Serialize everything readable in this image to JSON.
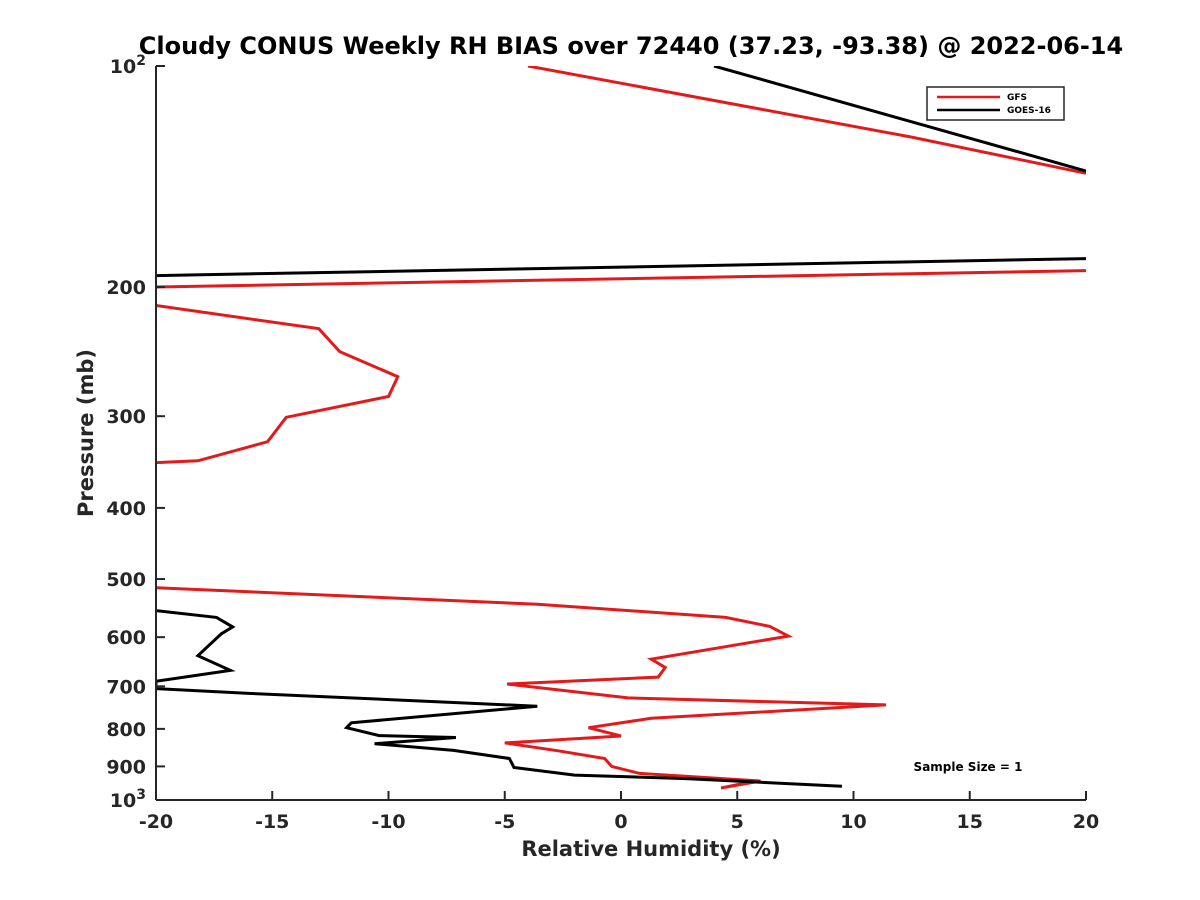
{
  "chart_data": {
    "type": "line",
    "title": "Cloudy CONUS Weekly RH BIAS over 72440 (37.23, -93.38) @ 2022-06-14",
    "xlabel": "Relative Humidity (%)",
    "ylabel": "Pressure (mb)",
    "xlim": [
      -20,
      20
    ],
    "ylim": [
      100,
      1000
    ],
    "yscale": "log",
    "y_reversed": true,
    "grid": false,
    "legend_position": "top-right",
    "x_ticks": [
      {
        "value": -20,
        "label": "-20"
      },
      {
        "value": -15,
        "label": "-15"
      },
      {
        "value": -10,
        "label": "-10"
      },
      {
        "value": -5,
        "label": "-5"
      },
      {
        "value": 0,
        "label": "0"
      },
      {
        "value": 5,
        "label": "5"
      },
      {
        "value": 10,
        "label": "10"
      },
      {
        "value": 15,
        "label": "15"
      },
      {
        "value": 20,
        "label": "20"
      }
    ],
    "y_ticks": [
      {
        "value": 100,
        "base": "10",
        "exp": "2"
      },
      {
        "value": 200,
        "base": "200",
        "exp": ""
      },
      {
        "value": 300,
        "base": "300",
        "exp": ""
      },
      {
        "value": 400,
        "base": "400",
        "exp": ""
      },
      {
        "value": 500,
        "base": "500",
        "exp": ""
      },
      {
        "value": 600,
        "base": "600",
        "exp": ""
      },
      {
        "value": 700,
        "base": "700",
        "exp": ""
      },
      {
        "value": 800,
        "base": "800",
        "exp": ""
      },
      {
        "value": 900,
        "base": "900",
        "exp": ""
      },
      {
        "value": 1000,
        "base": "10",
        "exp": "3"
      }
    ],
    "series": [
      {
        "name": "GFS",
        "color": "#e31a1c",
        "segments": [
          [
            [
              -4,
              100
            ],
            [
              12.5,
              125
            ],
            [
              20,
              140
            ]
          ],
          [
            [
              -20,
              200
            ],
            [
              20,
              190
            ]
          ],
          [
            [
              -20,
              212
            ],
            [
              -13,
              228
            ],
            [
              -12.1,
              245
            ],
            [
              -9.6,
              265
            ],
            [
              -10,
              282
            ],
            [
              -14.4,
              301
            ],
            [
              -15.2,
              325
            ],
            [
              -18.2,
              345
            ],
            [
              -20,
              347
            ]
          ],
          [
            [
              -20,
              514
            ],
            [
              -3.6,
              541
            ],
            [
              4.5,
              564
            ],
            [
              6.4,
              580
            ],
            [
              7.2,
              598
            ],
            [
              1.3,
              643
            ],
            [
              1.9,
              660
            ],
            [
              1.6,
              680
            ],
            [
              -4.9,
              695
            ],
            [
              0.3,
              726
            ],
            [
              11.4,
              742
            ],
            [
              1.3,
              774
            ],
            [
              -1.4,
              797
            ],
            [
              0,
              818
            ],
            [
              -5,
              836
            ],
            [
              -2.7,
              857
            ],
            [
              -0.7,
              878
            ],
            [
              -0.4,
              900
            ],
            [
              0.8,
              920
            ],
            [
              6,
              942
            ],
            [
              4.3,
              963
            ],
            [
              5.5,
              946
            ]
          ]
        ]
      },
      {
        "name": "GOES-16",
        "color": "#000000",
        "segments": [
          [
            [
              4,
              100
            ],
            [
              19.3,
              137
            ],
            [
              20,
              139
            ]
          ],
          [
            [
              -20,
              193
            ],
            [
              20,
              183
            ]
          ],
          [
            [
              -20,
              552
            ],
            [
              -17.4,
              564
            ],
            [
              -16.7,
              581
            ],
            [
              -17.2,
              594
            ],
            [
              -18.2,
              636
            ],
            [
              -16.8,
              666
            ],
            [
              -20,
              689
            ],
            [
              -20,
              705
            ],
            [
              -15.9,
              716
            ],
            [
              -3.6,
              745
            ],
            [
              -11.6,
              785
            ],
            [
              -11.8,
              797
            ],
            [
              -10.4,
              817
            ],
            [
              -7.1,
              822
            ],
            [
              -10.6,
              838
            ],
            [
              -7.2,
              856
            ],
            [
              -4.8,
              878
            ],
            [
              -4.6,
              903
            ],
            [
              -2,
              925
            ],
            [
              2.8,
              935
            ],
            [
              9.5,
              958
            ]
          ]
        ]
      }
    ],
    "annotations": [
      "Sample Size = 1"
    ]
  }
}
